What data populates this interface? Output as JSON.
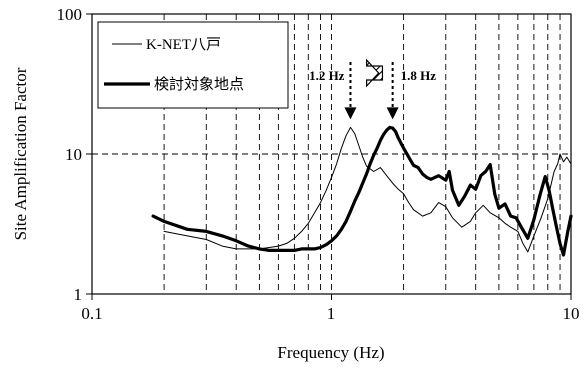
{
  "chart_data": {
    "type": "line",
    "title": "",
    "xlabel": "Frequency (Hz)",
    "ylabel": "Site Amplification Factor",
    "xscale": "log",
    "yscale": "log",
    "xlim": [
      0.1,
      10
    ],
    "ylim": [
      1,
      100
    ],
    "x_tick_labels": [
      "0.1",
      "1",
      "10"
    ],
    "y_tick_labels": [
      "1",
      "10",
      "100"
    ],
    "grid": "dashed vertical minor/major lines; dashed horizontal line at 10",
    "legend_position": "top-left",
    "series": [
      {
        "name": "K-NET八戸",
        "style": "thin",
        "color": "#000000",
        "points": [
          [
            0.2,
            2.8
          ],
          [
            0.25,
            2.6
          ],
          [
            0.3,
            2.45
          ],
          [
            0.35,
            2.2
          ],
          [
            0.4,
            2.1
          ],
          [
            0.45,
            2.1
          ],
          [
            0.5,
            2.1
          ],
          [
            0.55,
            2.15
          ],
          [
            0.6,
            2.2
          ],
          [
            0.65,
            2.3
          ],
          [
            0.7,
            2.5
          ],
          [
            0.75,
            2.8
          ],
          [
            0.8,
            3.2
          ],
          [
            0.85,
            3.8
          ],
          [
            0.9,
            4.5
          ],
          [
            0.95,
            5.5
          ],
          [
            1.0,
            6.8
          ],
          [
            1.05,
            8.5
          ],
          [
            1.1,
            11.0
          ],
          [
            1.15,
            13.5
          ],
          [
            1.2,
            15.5
          ],
          [
            1.25,
            14.0
          ],
          [
            1.3,
            11.5
          ],
          [
            1.35,
            9.5
          ],
          [
            1.4,
            8.2
          ],
          [
            1.5,
            7.5
          ],
          [
            1.6,
            8.0
          ],
          [
            1.7,
            7.0
          ],
          [
            1.8,
            6.2
          ],
          [
            1.9,
            5.6
          ],
          [
            2.0,
            5.2
          ],
          [
            2.1,
            4.5
          ],
          [
            2.2,
            4.0
          ],
          [
            2.4,
            3.6
          ],
          [
            2.6,
            3.8
          ],
          [
            2.8,
            4.5
          ],
          [
            3.0,
            4.2
          ],
          [
            3.2,
            3.5
          ],
          [
            3.5,
            3.0
          ],
          [
            3.8,
            3.3
          ],
          [
            4.0,
            3.8
          ],
          [
            4.3,
            4.3
          ],
          [
            4.6,
            3.8
          ],
          [
            5.0,
            3.5
          ],
          [
            5.3,
            3.2
          ],
          [
            5.6,
            3.0
          ],
          [
            6.0,
            2.8
          ],
          [
            6.3,
            2.3
          ],
          [
            6.6,
            2.0
          ],
          [
            7.0,
            2.6
          ],
          [
            7.5,
            3.5
          ],
          [
            8.0,
            4.8
          ],
          [
            8.5,
            7.5
          ],
          [
            8.8,
            8.5
          ],
          [
            9.0,
            10.0
          ],
          [
            9.3,
            8.8
          ],
          [
            9.6,
            9.5
          ],
          [
            10.0,
            8.5
          ]
        ]
      },
      {
        "name": "検討対象地点",
        "style": "thick",
        "color": "#000000",
        "points": [
          [
            0.18,
            3.6
          ],
          [
            0.2,
            3.3
          ],
          [
            0.25,
            2.9
          ],
          [
            0.3,
            2.8
          ],
          [
            0.35,
            2.6
          ],
          [
            0.4,
            2.4
          ],
          [
            0.45,
            2.2
          ],
          [
            0.5,
            2.1
          ],
          [
            0.55,
            2.05
          ],
          [
            0.6,
            2.05
          ],
          [
            0.65,
            2.05
          ],
          [
            0.7,
            2.05
          ],
          [
            0.75,
            2.1
          ],
          [
            0.8,
            2.1
          ],
          [
            0.85,
            2.1
          ],
          [
            0.9,
            2.15
          ],
          [
            0.95,
            2.25
          ],
          [
            1.0,
            2.4
          ],
          [
            1.05,
            2.6
          ],
          [
            1.1,
            2.9
          ],
          [
            1.15,
            3.3
          ],
          [
            1.2,
            3.9
          ],
          [
            1.25,
            4.6
          ],
          [
            1.3,
            5.3
          ],
          [
            1.35,
            6.2
          ],
          [
            1.4,
            7.2
          ],
          [
            1.45,
            8.5
          ],
          [
            1.5,
            9.8
          ],
          [
            1.55,
            11.0
          ],
          [
            1.6,
            12.5
          ],
          [
            1.65,
            13.8
          ],
          [
            1.7,
            14.8
          ],
          [
            1.75,
            15.5
          ],
          [
            1.8,
            15.3
          ],
          [
            1.85,
            14.5
          ],
          [
            1.9,
            13.0
          ],
          [
            2.0,
            11.0
          ],
          [
            2.1,
            9.5
          ],
          [
            2.2,
            8.3
          ],
          [
            2.3,
            8.0
          ],
          [
            2.4,
            7.2
          ],
          [
            2.5,
            6.8
          ],
          [
            2.6,
            6.6
          ],
          [
            2.8,
            7.0
          ],
          [
            3.0,
            6.5
          ],
          [
            3.1,
            7.5
          ],
          [
            3.2,
            5.5
          ],
          [
            3.4,
            4.3
          ],
          [
            3.6,
            5.0
          ],
          [
            3.8,
            6.0
          ],
          [
            4.0,
            5.6
          ],
          [
            4.2,
            7.0
          ],
          [
            4.4,
            7.5
          ],
          [
            4.6,
            8.4
          ],
          [
            4.8,
            5.2
          ],
          [
            5.0,
            4.1
          ],
          [
            5.3,
            4.4
          ],
          [
            5.6,
            3.6
          ],
          [
            5.9,
            3.5
          ],
          [
            6.2,
            3.0
          ],
          [
            6.6,
            2.5
          ],
          [
            7.0,
            3.4
          ],
          [
            7.4,
            5.0
          ],
          [
            7.8,
            6.9
          ],
          [
            8.1,
            5.5
          ],
          [
            8.4,
            4.0
          ],
          [
            8.7,
            3.0
          ],
          [
            9.0,
            2.3
          ],
          [
            9.3,
            1.9
          ],
          [
            9.7,
            2.8
          ],
          [
            10.0,
            3.6
          ]
        ]
      }
    ],
    "annotations": [
      {
        "text": "1.2 Hz",
        "x": 1.2,
        "target_y": 15.5
      },
      {
        "text": "1.8 Hz",
        "x": 1.8,
        "target_y": 15.5
      }
    ]
  }
}
